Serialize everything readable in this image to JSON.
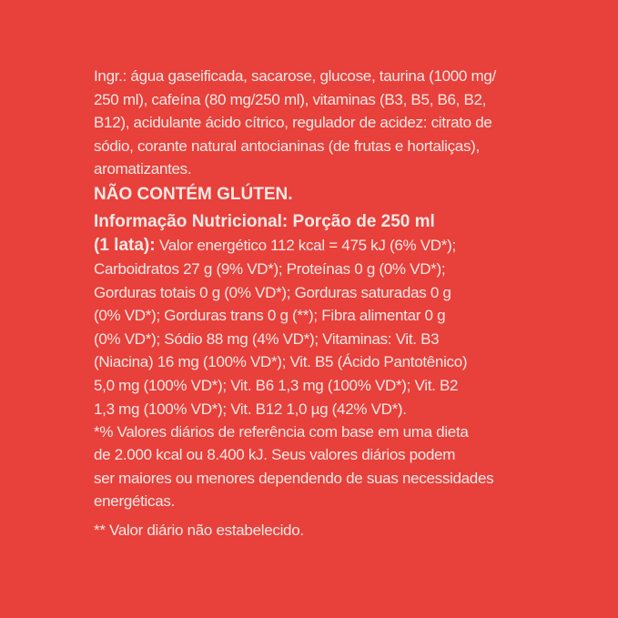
{
  "ingredients": [
    "Ingr.: água gaseificada, sacarose, glucose, taurina (1000 mg/",
    "250 ml), cafeína (80 mg/250 ml), vitaminas (B3, B5, B6, B2,",
    "B12), acidulante ácido cítrico, regulador de acidez: citrato de",
    "sódio, corante natural antocianinas (de frutas e hortaliças),",
    "aromatizantes."
  ],
  "gluten_notice": "NÃO CONTÉM GLÚTEN.",
  "nutrition_heading": "Informação Nutricional: Porção de 250 ml",
  "nutrition_heading_cont": "(1 lata):",
  "nutrition_lines": [
    " Valor energético 112 kcal = 475 kJ (6% VD*);",
    "Carboidratos 27 g (9% VD*); Proteínas 0 g (0% VD*);",
    "Gorduras totais 0 g (0% VD*); Gorduras saturadas 0 g",
    "(0% VD*); Gorduras trans 0 g (**); Fibra alimentar 0 g",
    "(0% VD*); Sódio 88 mg (4% VD*); Vitaminas: Vit. B3",
    "(Niacina) 16 mg (100% VD*); Vit. B5 (Ácido Pantotênico)",
    "5,0 mg (100% VD*); Vit. B6 1,3 mg (100% VD*); Vit. B2",
    "1,3 mg (100% VD*); Vit. B12 1,0 µg (42% VD*)."
  ],
  "footnote_lines": [
    "*% Valores diários de referência com base em uma dieta",
    "de 2.000 kcal ou 8.400 kJ. Seus valores diários podem",
    "ser maiores ou menores dependendo de suas necessidades",
    "energéticas."
  ],
  "footnote2": "** Valor diário não estabelecido.",
  "colors": {
    "background": "#e8403a",
    "text": "#f8e8e6"
  }
}
